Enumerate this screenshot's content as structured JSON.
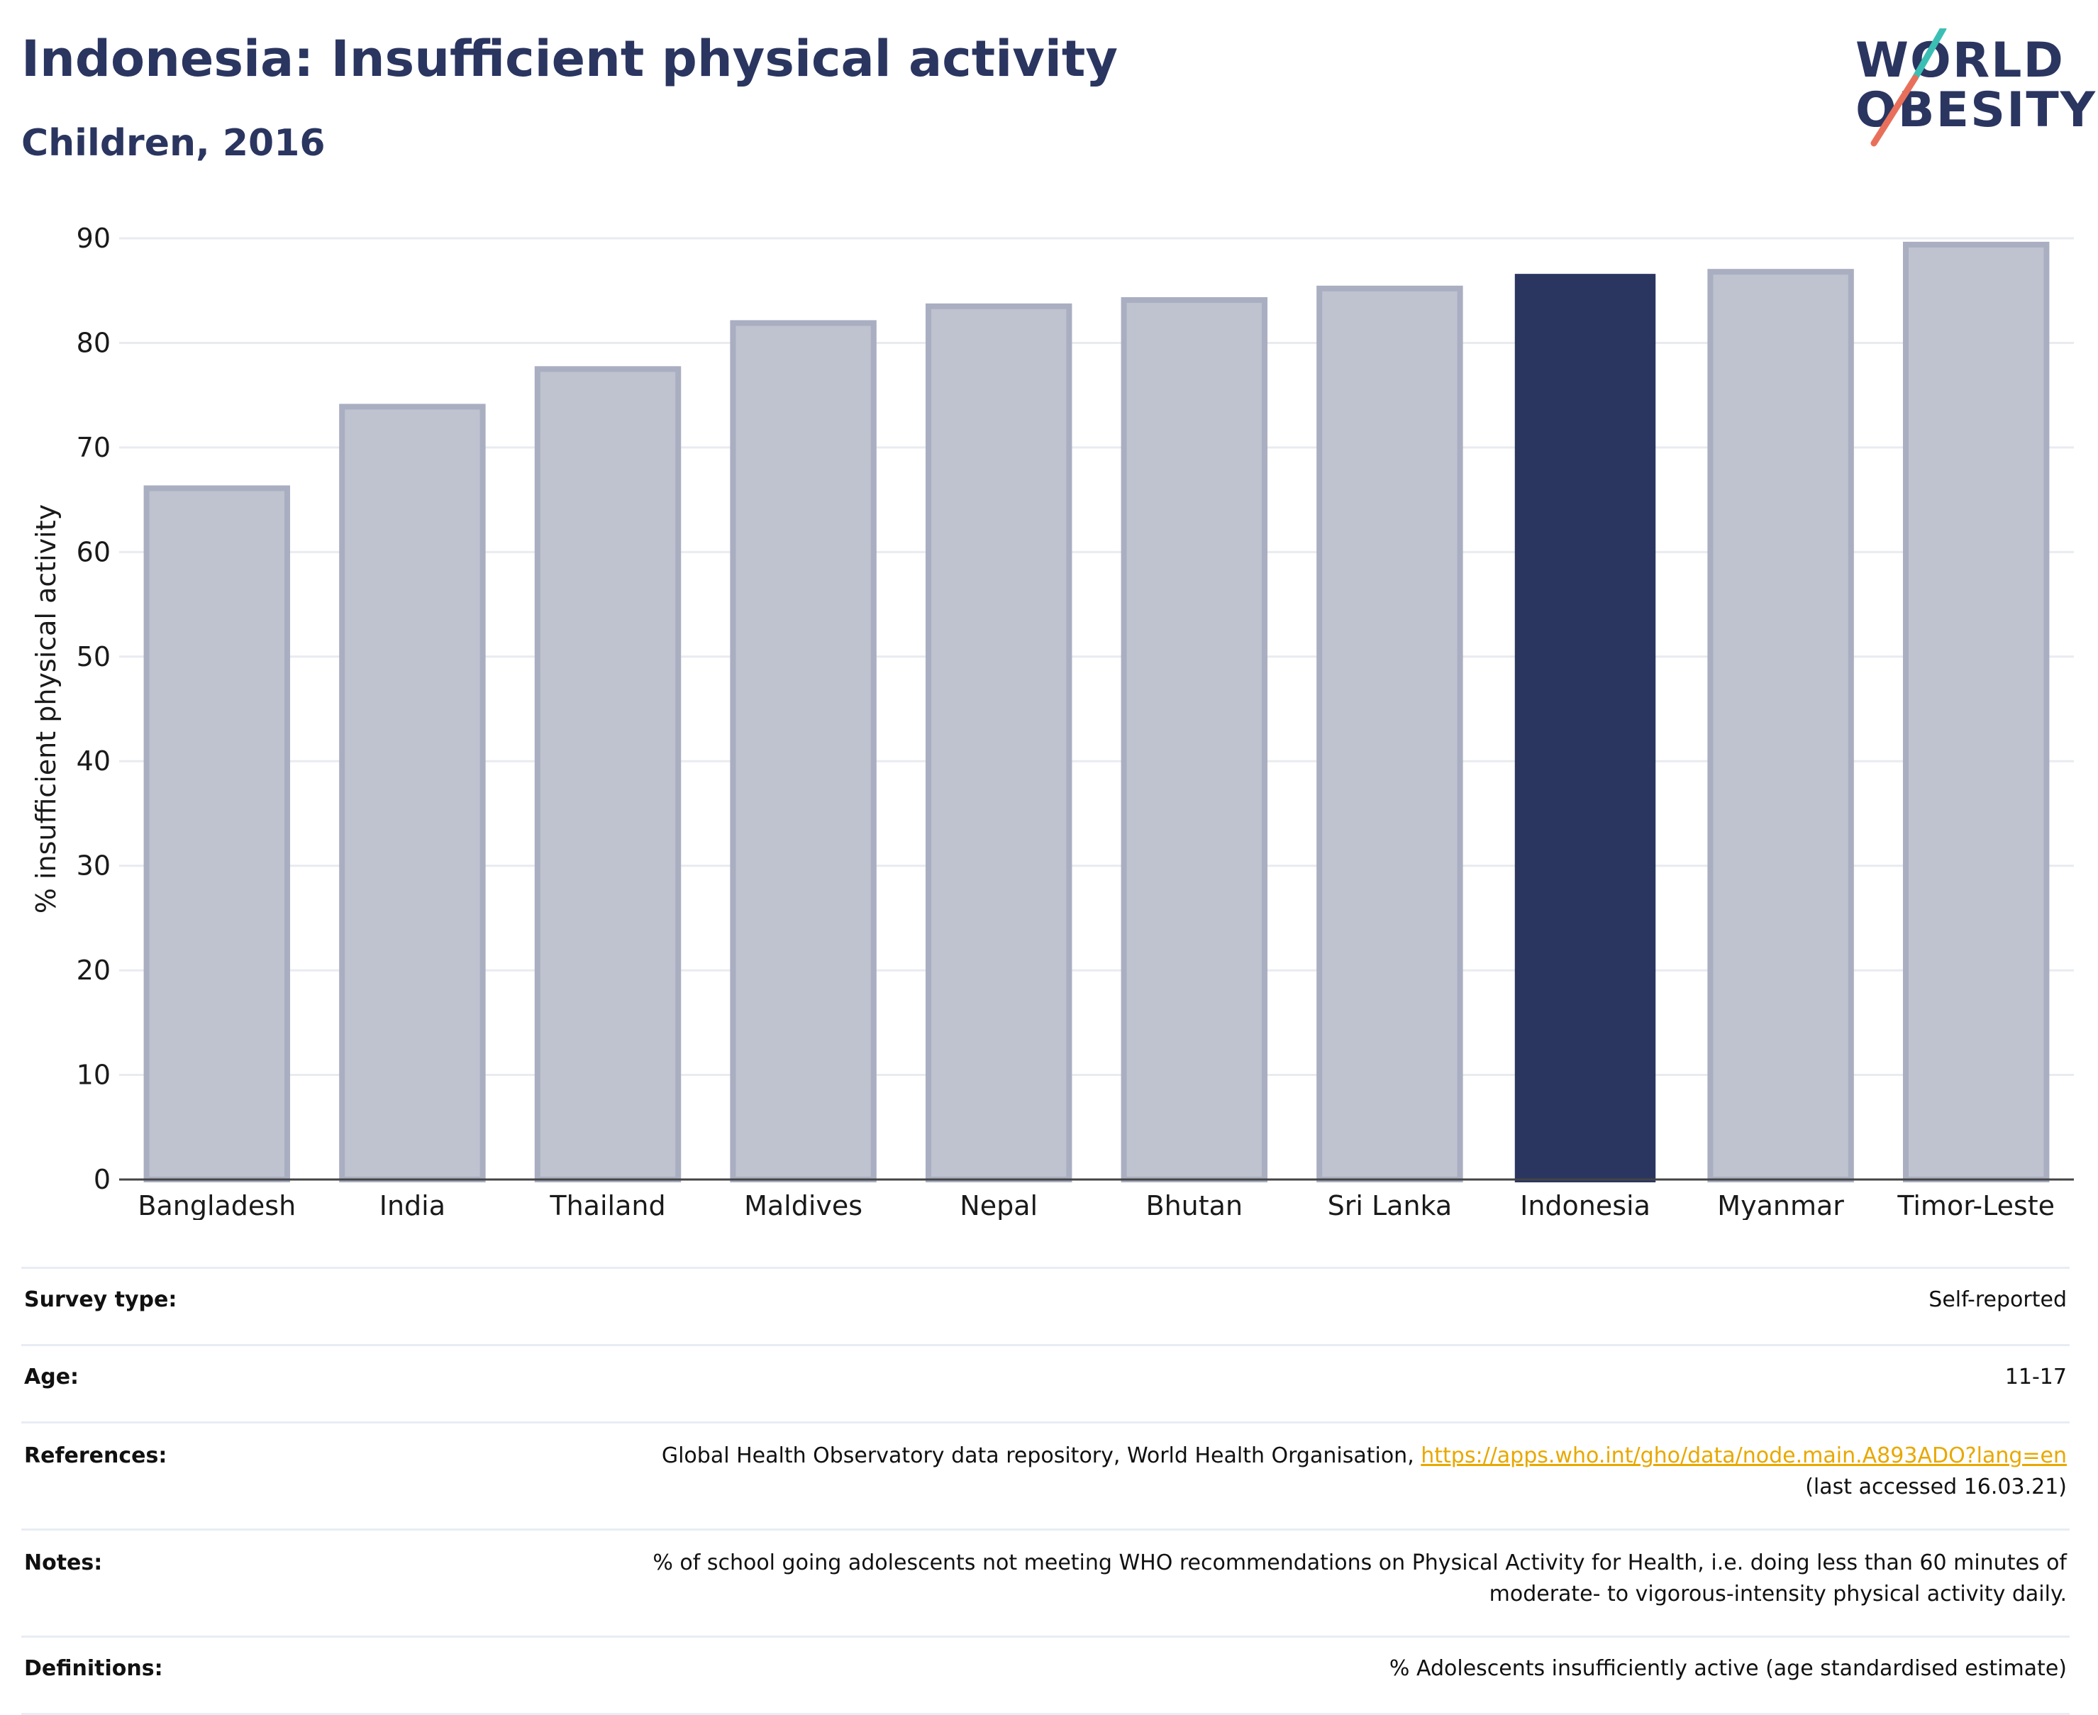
{
  "header": {
    "title": "Indonesia: Insufficient physical activity",
    "subtitle": "Children, 2016",
    "logo_line1": "WORLD",
    "logo_line2": "OBESITY"
  },
  "colors": {
    "accent": "#2a3560",
    "bar_other": "#bfc2cf",
    "bar_other_edge": "#a9aec1",
    "logo_teal": "#3bbfb5",
    "logo_coral": "#e8705a",
    "link": "#e8a800"
  },
  "chart_data": {
    "type": "bar",
    "categories": [
      "Bangladesh",
      "India",
      "Thailand",
      "Maldives",
      "Nepal",
      "Bhutan",
      "Sri Lanka",
      "Indonesia",
      "Myanmar",
      "Timor-Leste"
    ],
    "values": [
      66.1,
      73.9,
      77.5,
      81.9,
      83.5,
      84.1,
      85.2,
      86.6,
      86.8,
      89.4
    ],
    "highlight": "Indonesia",
    "ylabel": "% insufficient physical activity",
    "xlabel": "",
    "ylim": [
      0,
      90
    ],
    "yticks": [
      0,
      10,
      20,
      30,
      40,
      50,
      60,
      70,
      80,
      90
    ],
    "grid": true
  },
  "info": {
    "survey_type_label": "Survey type:",
    "survey_type_value": "Self-reported",
    "age_label": "Age:",
    "age_value": "11-17",
    "references_label": "References:",
    "references_text": "Global Health Observatory data repository, World Health Organisation, ",
    "references_link": "https://apps.who.int/gho/data/node.main.A893ADO?lang=en",
    "references_accessed": "(last accessed 16.03.21)",
    "notes_label": "Notes:",
    "notes_line1": "% of school going adolescents not meeting WHO recommendations on Physical Activity for Health, i.e. doing less than 60 minutes of",
    "notes_line2": "moderate- to vigorous-intensity physical activity daily.",
    "definitions_label": "Definitions:",
    "definitions_value": "% Adolescents insufficiently active (age standardised estimate)"
  }
}
